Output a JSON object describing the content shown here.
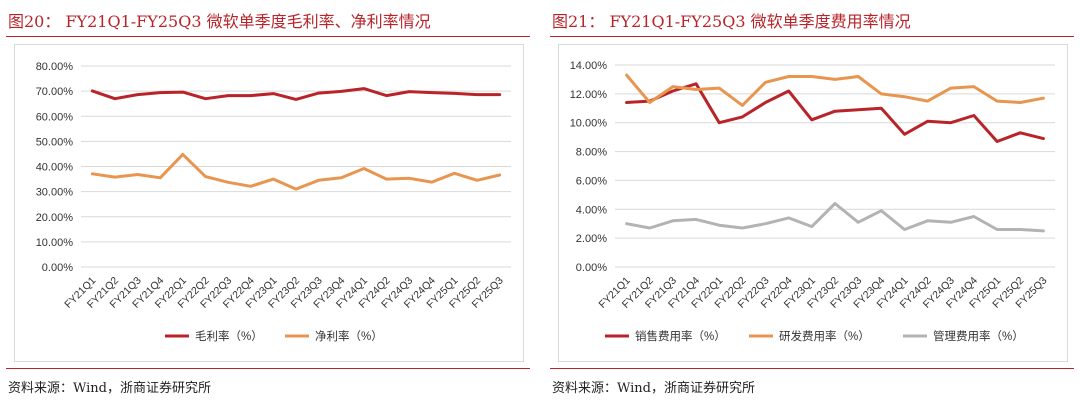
{
  "left": {
    "title": "图20： FY21Q1-FY25Q3 微软单季度毛利率、净利率情况",
    "source": "资料来源：Wind，浙商证券研究所"
  },
  "right": {
    "title": "图21： FY21Q1-FY25Q3 微软单季度费用率情况",
    "source": "资料来源：Wind，浙商证券研究所"
  },
  "chart_data": [
    {
      "type": "line",
      "categories": [
        "FY21Q1",
        "FY21Q2",
        "FY21Q3",
        "FY21Q4",
        "FY22Q1",
        "FY22Q2",
        "FY22Q3",
        "FY22Q4",
        "FY23Q1",
        "FY23Q2",
        "FY23Q3",
        "FY23Q4",
        "FY24Q1",
        "FY24Q2",
        "FY24Q3",
        "FY24Q4",
        "FY25Q1",
        "FY25Q2",
        "FY25Q3"
      ],
      "ylim": [
        0,
        80
      ],
      "yticks": [
        "0.00%",
        "10.00%",
        "20.00%",
        "30.00%",
        "40.00%",
        "50.00%",
        "60.00%",
        "70.00%",
        "80.00%"
      ],
      "grid": true,
      "legend": "bottom",
      "series": [
        {
          "name": "毛利率（%）",
          "color": "#b8242a",
          "values": [
            70.1,
            67.0,
            68.6,
            69.4,
            69.6,
            67.0,
            68.2,
            68.2,
            69.0,
            66.7,
            69.2,
            69.9,
            71.0,
            68.2,
            69.8,
            69.4,
            69.1,
            68.6,
            68.6
          ]
        },
        {
          "name": "净利率（%）",
          "color": "#e8954f",
          "values": [
            37.1,
            35.8,
            36.8,
            35.5,
            44.8,
            36.0,
            33.7,
            32.1,
            35.0,
            31.0,
            34.5,
            35.5,
            39.2,
            35.0,
            35.3,
            33.8,
            37.3,
            34.5,
            36.6
          ]
        }
      ]
    },
    {
      "type": "line",
      "categories": [
        "FY21Q1",
        "FY21Q2",
        "FY21Q3",
        "FY21Q4",
        "FY22Q1",
        "FY22Q2",
        "FY22Q3",
        "FY22Q4",
        "FY23Q1",
        "FY23Q2",
        "FY23Q3",
        "FY23Q4",
        "FY24Q1",
        "FY24Q2",
        "FY24Q3",
        "FY24Q4",
        "FY25Q1",
        "FY25Q2",
        "FY25Q3"
      ],
      "ylim": [
        0,
        14
      ],
      "yticks": [
        "0.00%",
        "2.00%",
        "4.00%",
        "6.00%",
        "8.00%",
        "10.00%",
        "12.00%",
        "14.00%"
      ],
      "grid": true,
      "legend": "bottom",
      "series": [
        {
          "name": "销售费用率（%）",
          "color": "#b8242a",
          "values": [
            11.4,
            11.5,
            12.2,
            12.7,
            10.0,
            10.4,
            11.4,
            12.2,
            10.2,
            10.8,
            10.9,
            11.0,
            9.2,
            10.1,
            10.0,
            10.5,
            8.7,
            9.3,
            8.9
          ]
        },
        {
          "name": "研发费用率（%）",
          "color": "#e8954f",
          "values": [
            13.3,
            11.4,
            12.5,
            12.3,
            12.4,
            11.2,
            12.8,
            13.2,
            13.2,
            13.0,
            13.2,
            12.0,
            11.8,
            11.5,
            12.4,
            12.5,
            11.5,
            11.4,
            11.7
          ]
        },
        {
          "name": "管理费用率（%）",
          "color": "#b3b3b3",
          "values": [
            3.0,
            2.7,
            3.2,
            3.3,
            2.9,
            2.7,
            3.0,
            3.4,
            2.8,
            4.4,
            3.1,
            3.9,
            2.6,
            3.2,
            3.1,
            3.5,
            2.6,
            2.6,
            2.5
          ]
        }
      ]
    }
  ]
}
